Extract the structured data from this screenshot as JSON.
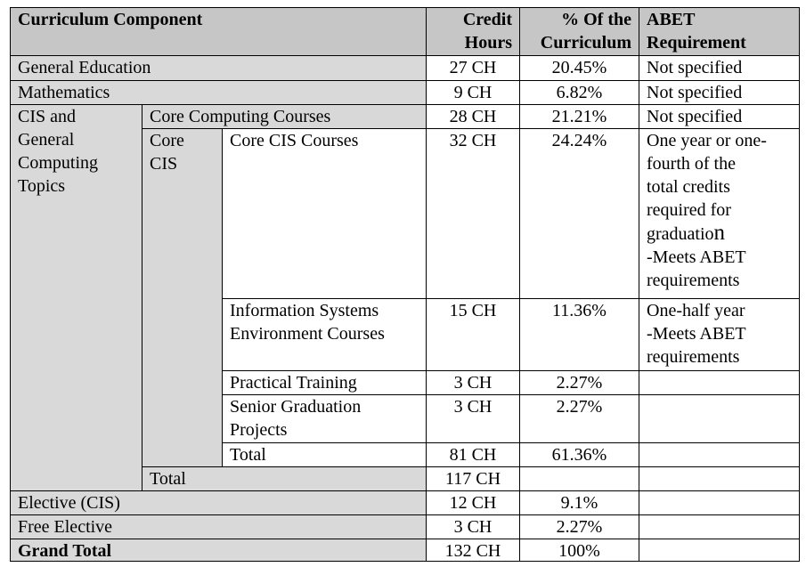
{
  "header": {
    "component": "Curriculum Component",
    "credit_hours_line1": "Credit",
    "credit_hours_line2": "Hours",
    "percent_line1": "% Of the",
    "percent_line2": "Curriculum",
    "abet_line1": "ABET",
    "abet_line2": "Requirement"
  },
  "rows": {
    "general_education": {
      "label": "General Education",
      "credits": "27 CH",
      "percent": "20.45%",
      "abet": "Not specified"
    },
    "mathematics": {
      "label": "Mathematics",
      "credits": "9 CH",
      "percent": "6.82%",
      "abet": "Not specified"
    },
    "cis_group": {
      "label_lines": [
        "CIS and",
        "General",
        "Computing",
        "Topics"
      ],
      "core_computing": {
        "label": "Core Computing Courses",
        "credits": "28 CH",
        "percent": "21.21%",
        "abet": "Not specified"
      },
      "core_cis_group_lines": [
        "Core",
        "CIS"
      ],
      "core_cis_courses": {
        "label": "Core CIS Courses",
        "credits": "32 CH",
        "percent": "24.24%",
        "abet_lines": [
          "One year or one-",
          "fourth of the",
          "total credits",
          "required for",
          "graduatio",
          "n",
          "-Meets ABET",
          "requirements"
        ]
      },
      "info_systems": {
        "label_lines": [
          "Information Systems",
          "Environment Courses"
        ],
        "credits": "15 CH",
        "percent": "11.36%",
        "abet_lines": [
          "One-half year",
          "-Meets ABET",
          "requirements"
        ]
      },
      "practical_training": {
        "label": "Practical Training",
        "credits": "3 CH",
        "percent": "2.27%"
      },
      "senior_projects": {
        "label_lines": [
          "Senior Graduation",
          "Projects"
        ],
        "credits": "3 CH",
        "percent": "2.27%"
      },
      "core_cis_total": {
        "label": "Total",
        "credits": "81 CH",
        "percent": "61.36%"
      },
      "group_total": {
        "label": "Total",
        "credits": "117 CH"
      }
    },
    "elective_cis": {
      "label": "Elective (CIS)",
      "credits": "12 CH",
      "percent": "9.1%"
    },
    "free_elective": {
      "label": "Free Elective",
      "credits": "3 CH",
      "percent": "2.27%"
    },
    "grand_total": {
      "label": "Grand Total",
      "credits": "132 CH",
      "percent": "100%"
    }
  }
}
